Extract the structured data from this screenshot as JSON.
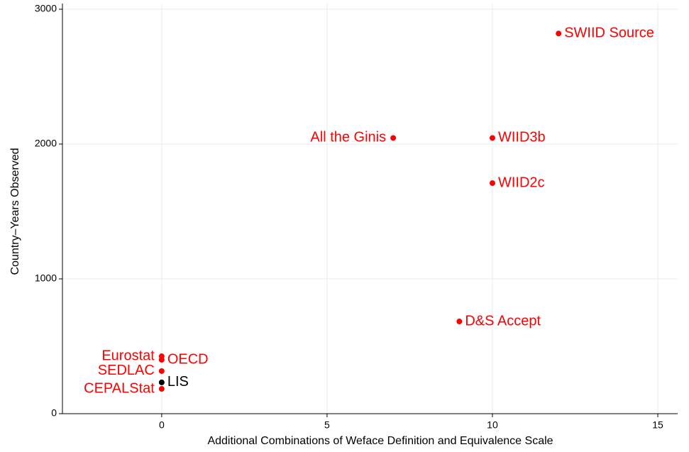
{
  "chart_data": {
    "type": "scatter",
    "xlabel": "Additional Combinations of Weface Definition and Equivalence Scale",
    "ylabel": "Country–Years Observed",
    "labels": [
      "SWIID Source",
      "All the Ginis",
      "WIID3b",
      "WIID2c",
      "D&S Accept",
      "Eurostat",
      "OECD",
      "SEDLAC",
      "LIS",
      "CEPALStat"
    ],
    "x": [
      12,
      7,
      10,
      10,
      9,
      0,
      0,
      0,
      0,
      0
    ],
    "values": [
      2820,
      2045,
      2045,
      1710,
      684,
      426,
      400,
      316,
      232,
      184
    ],
    "colors": [
      "#ff0000",
      "#ff0000",
      "#ff0000",
      "#ff0000",
      "#ff0000",
      "#ff0000",
      "#ff0000",
      "#ff0000",
      "#000000",
      "#ff0000"
    ],
    "xlim": [
      -3,
      15.6
    ],
    "ylim": [
      0,
      3000
    ],
    "xticks": [
      0,
      5,
      10,
      15
    ],
    "yticks": [
      0,
      1000,
      2000,
      3000
    ],
    "grid": true
  }
}
